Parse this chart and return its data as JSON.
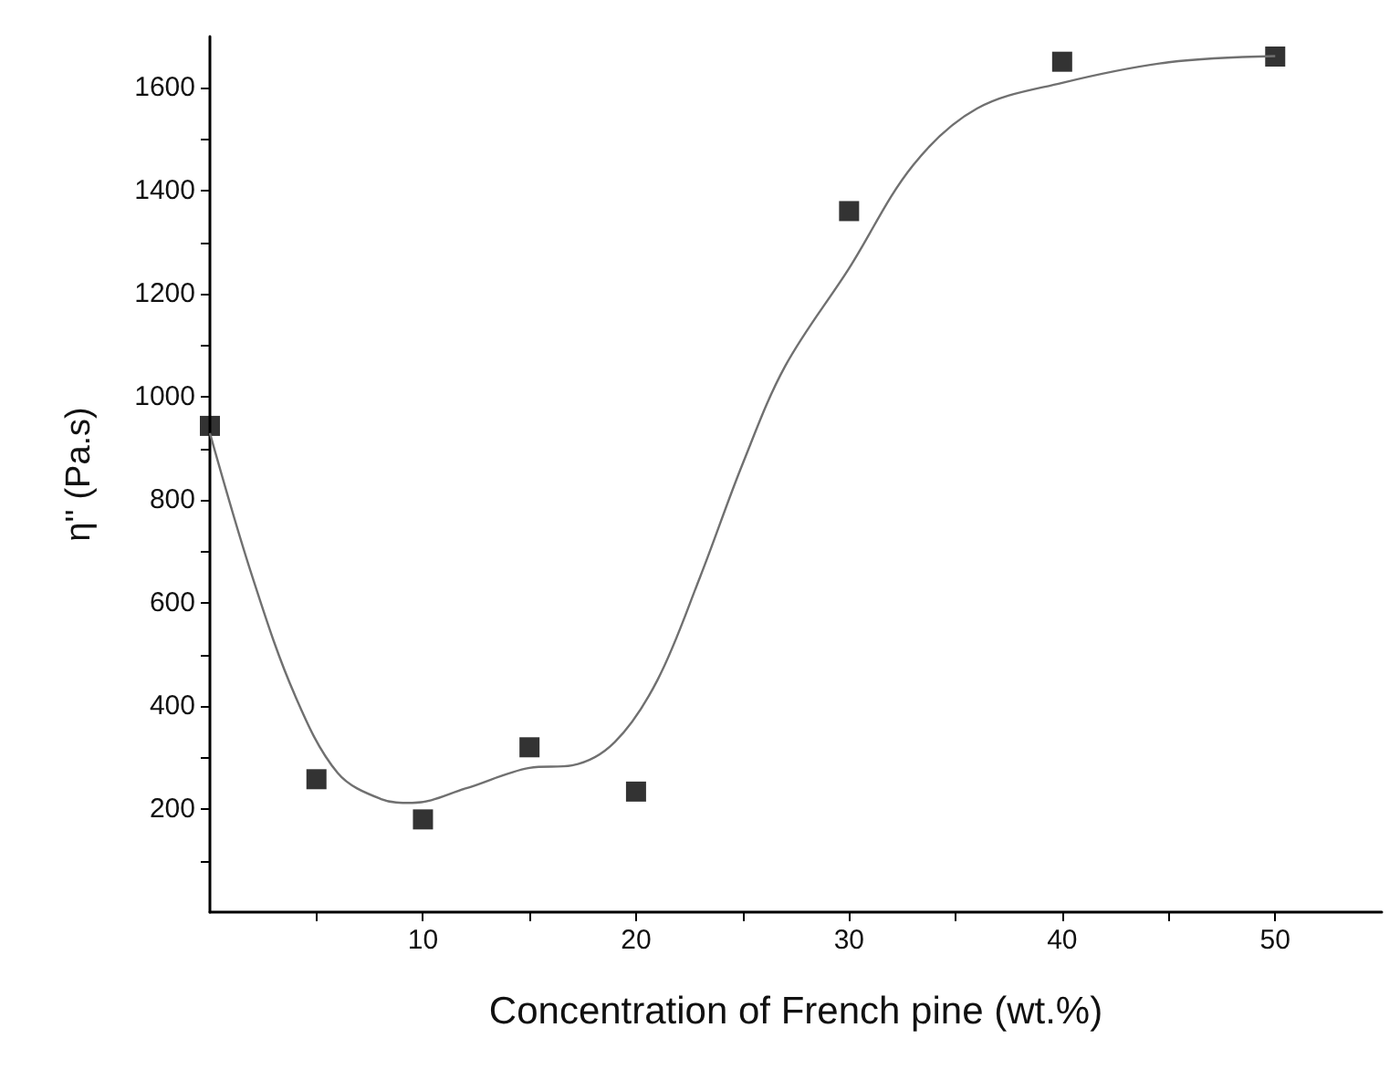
{
  "chart_data": {
    "type": "scatter",
    "xlabel": "Concentration of French pine (wt.%)",
    "ylabel": "η'' (Pa.s)",
    "xlim": [
      0,
      55
    ],
    "ylim": [
      0,
      1700
    ],
    "xticks": [
      {
        "value": 5,
        "label": null
      },
      10,
      {
        "value": 15,
        "label": null
      },
      20,
      {
        "value": 25,
        "label": null
      },
      30,
      {
        "value": 35,
        "label": null
      },
      40,
      {
        "value": 45,
        "label": null
      },
      50
    ],
    "yticks": [
      {
        "value": 100,
        "label": null
      },
      200,
      {
        "value": 300,
        "label": null
      },
      400,
      {
        "value": 500,
        "label": null
      },
      600,
      {
        "value": 700,
        "label": null
      },
      800,
      {
        "value": 900,
        "label": null
      },
      1000,
      {
        "value": 1100,
        "label": null
      },
      1200,
      {
        "value": 1300,
        "label": null
      },
      1400,
      {
        "value": 1500,
        "label": null
      },
      1600
    ],
    "grid": false,
    "marker": "square",
    "series": [
      {
        "color": "#000000",
        "x": [
          0,
          5,
          10,
          15,
          20,
          30,
          40,
          50
        ],
        "values": [
          944,
          258,
          180,
          320,
          234,
          1361,
          1651,
          1661
        ]
      },
      {
        "type": "line",
        "color": "#707070",
        "marker": "none",
        "line_style": "solid",
        "x": [
          0,
          2,
          4,
          6,
          8,
          9.5,
          12,
          15,
          17,
          19,
          21,
          23,
          25,
          27,
          30,
          33,
          36,
          40,
          45,
          50
        ],
        "values": [
          930,
          650,
          420,
          270,
          220,
          212,
          240,
          280,
          285,
          330,
          450,
          650,
          870,
          1060,
          1250,
          1450,
          1560,
          1610,
          1650,
          1662
        ]
      }
    ]
  }
}
